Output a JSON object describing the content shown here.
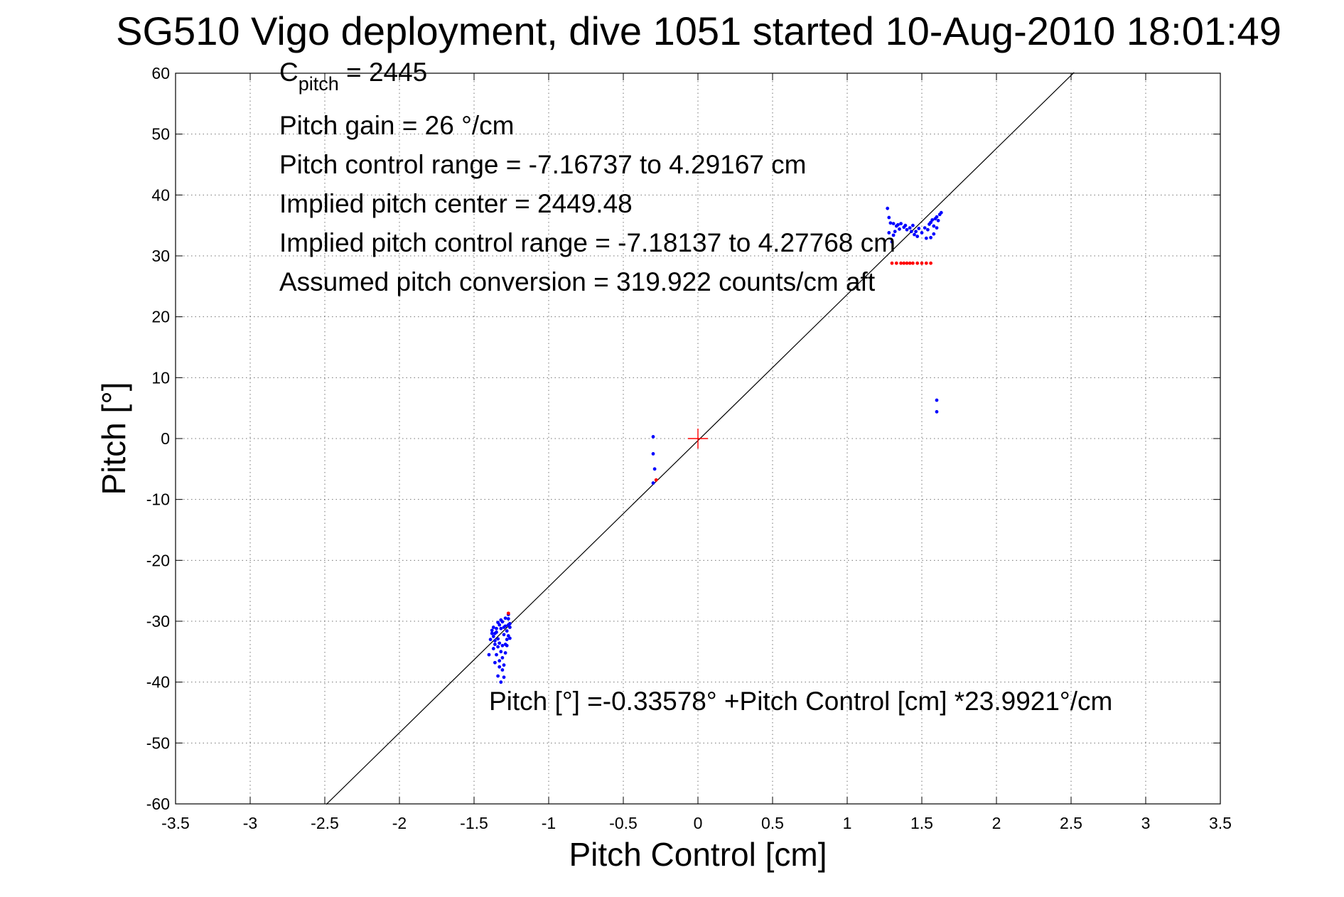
{
  "chart_data": {
    "type": "scatter",
    "title": "SG510 Vigo deployment, dive 1051 started 10-Aug-2010 18:01:49",
    "xlabel": "Pitch Control [cm]",
    "ylabel": "Pitch [°]",
    "xlim": [
      -3.5,
      3.5
    ],
    "ylim": [
      -60,
      60
    ],
    "xticks": [
      -3.5,
      -3,
      -2.5,
      -2,
      -1.5,
      -1,
      -0.5,
      0,
      0.5,
      1,
      1.5,
      2,
      2.5,
      3,
      3.5
    ],
    "yticks": [
      -60,
      -50,
      -40,
      -30,
      -20,
      -10,
      0,
      10,
      20,
      30,
      40,
      50,
      60
    ],
    "grid": true,
    "annotations": {
      "c_pitch_main": "C",
      "c_pitch_sub": "pitch",
      "c_pitch_value": " = 2445",
      "gain": "Pitch gain = 26 °/cm",
      "control_range": "Pitch control range = -7.16737 to 4.29167 cm",
      "implied_center": "Implied pitch center = 2449.48",
      "implied_range": "Implied pitch control range = -7.18137 to 4.27768 cm",
      "conversion": "Assumed pitch conversion = 319.922 counts/cm aft",
      "fit_equation": "Pitch [°] =-0.33578° +Pitch Control [cm] *23.9921°/cm"
    },
    "center_marker": {
      "x": 0,
      "y": 0,
      "color": "#ff0000"
    },
    "fit_line": {
      "intercept": -0.33578,
      "slope": 23.9921,
      "x": [
        -2.49,
        2.52
      ],
      "color": "#000000"
    },
    "series": [
      {
        "color": "#0000ff",
        "points": [
          [
            -1.38,
            -31.5
          ],
          [
            -1.37,
            -32.5
          ],
          [
            -1.36,
            -33.2
          ],
          [
            -1.35,
            -31.8
          ],
          [
            -1.34,
            -32.9
          ],
          [
            -1.33,
            -33.6
          ],
          [
            -1.32,
            -31.2
          ],
          [
            -1.31,
            -34.0
          ],
          [
            -1.3,
            -32.2
          ],
          [
            -1.29,
            -30.8
          ],
          [
            -1.28,
            -31.6
          ],
          [
            -1.27,
            -29.6
          ],
          [
            -1.26,
            -30.4
          ],
          [
            -1.37,
            -34.5
          ],
          [
            -1.35,
            -35.5
          ],
          [
            -1.33,
            -36.5
          ],
          [
            -1.31,
            -38.0
          ],
          [
            -1.32,
            -40.0
          ],
          [
            -1.3,
            -37.2
          ],
          [
            -1.34,
            -39.0
          ],
          [
            -1.36,
            -33.8
          ],
          [
            -1.29,
            -35.2
          ],
          [
            -1.28,
            -33.0
          ],
          [
            -1.27,
            -32.4
          ],
          [
            -1.26,
            -31.0
          ],
          [
            -1.27,
            -28.9
          ],
          [
            -1.29,
            -29.5
          ],
          [
            -1.31,
            -30.1
          ],
          [
            -1.33,
            -30.6
          ],
          [
            -1.35,
            -31.2
          ],
          [
            -1.38,
            -32.0
          ],
          [
            -1.4,
            -35.5
          ],
          [
            -1.39,
            -33.0
          ],
          [
            -1.37,
            -31.0
          ],
          [
            -1.36,
            -32.0
          ],
          [
            -1.34,
            -30.2
          ],
          [
            -1.32,
            -29.8
          ],
          [
            -1.3,
            -31.0
          ],
          [
            -1.28,
            -34.0
          ],
          [
            -1.26,
            -32.8
          ],
          [
            -1.33,
            -37.5
          ],
          [
            -1.31,
            -36.0
          ],
          [
            -1.3,
            -39.2
          ],
          [
            -1.32,
            -35.0
          ],
          [
            -1.34,
            -34.2
          ],
          [
            -1.36,
            -36.8
          ],
          [
            -1.29,
            -33.8
          ],
          [
            -1.27,
            -30.6
          ],
          [
            -0.3,
            0.3
          ],
          [
            -0.3,
            -2.5
          ],
          [
            -0.29,
            -5.0
          ],
          [
            -0.3,
            -7.3
          ],
          [
            1.27,
            37.8
          ],
          [
            1.28,
            36.3
          ],
          [
            1.28,
            33.8
          ],
          [
            1.29,
            35.4
          ],
          [
            1.3,
            32.3
          ],
          [
            1.31,
            35.3
          ],
          [
            1.33,
            34.9
          ],
          [
            1.34,
            35.1
          ],
          [
            1.35,
            34.4
          ],
          [
            1.36,
            35.3
          ],
          [
            1.38,
            34.7
          ],
          [
            1.39,
            35.0
          ],
          [
            1.4,
            34.3
          ],
          [
            1.42,
            34.6
          ],
          [
            1.44,
            35.0
          ],
          [
            1.45,
            33.5
          ],
          [
            1.46,
            34.0
          ],
          [
            1.47,
            33.2
          ],
          [
            1.48,
            34.5
          ],
          [
            1.5,
            33.8
          ],
          [
            1.52,
            34.6
          ],
          [
            1.53,
            32.9
          ],
          [
            1.54,
            34.3
          ],
          [
            1.55,
            35.2
          ],
          [
            1.56,
            35.5
          ],
          [
            1.57,
            35.9
          ],
          [
            1.58,
            34.9
          ],
          [
            1.59,
            36.1
          ],
          [
            1.6,
            36.4
          ],
          [
            1.61,
            35.8
          ],
          [
            1.62,
            36.8
          ],
          [
            1.63,
            37.1
          ],
          [
            1.58,
            33.6
          ],
          [
            1.6,
            34.6
          ],
          [
            1.31,
            33.4
          ],
          [
            1.43,
            34.0
          ],
          [
            1.56,
            33.0
          ],
          [
            1.32,
            34.0
          ],
          [
            1.6,
            6.3
          ],
          [
            1.6,
            4.4
          ]
        ]
      },
      {
        "color": "#ff0000",
        "points": [
          [
            -1.27,
            -28.7
          ],
          [
            -0.28,
            -6.8
          ],
          [
            1.3,
            28.8
          ],
          [
            1.33,
            28.8
          ],
          [
            1.36,
            28.8
          ],
          [
            1.38,
            28.8
          ],
          [
            1.4,
            28.8
          ],
          [
            1.42,
            28.8
          ],
          [
            1.44,
            28.8
          ],
          [
            1.47,
            28.8
          ],
          [
            1.5,
            28.8
          ],
          [
            1.53,
            28.8
          ],
          [
            1.56,
            28.8
          ]
        ]
      }
    ]
  }
}
